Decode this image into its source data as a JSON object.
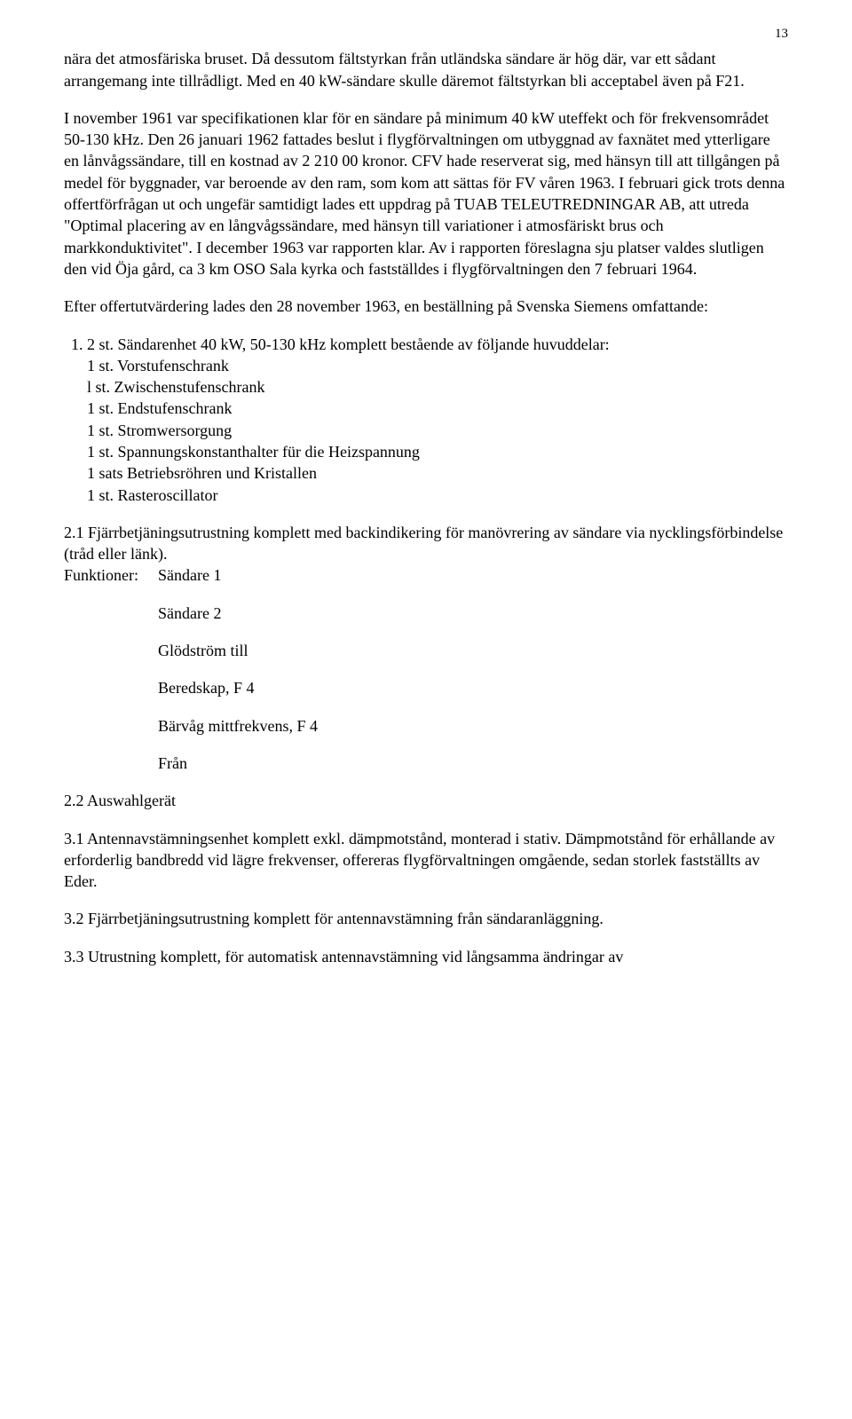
{
  "page_number": "13",
  "para1": "nära det atmosfäriska bruset. Då dessutom fältstyrkan från utländska sändare är hög där, var ett sådant arrangemang inte tillrådligt. Med en 40 kW-sändare skulle däremot fältstyrkan bli acceptabel även på F21.",
  "para2": "I november 1961 var specifikationen klar för en sändare på minimum 40 kW uteffekt och för frekvensområdet 50-130 kHz. Den 26 januari 1962 fattades beslut i flygförvaltningen om utbyggnad av faxnätet med ytterligare en lånvågssändare, till en kostnad av 2 210 00 kronor. CFV hade reserverat sig, med hänsyn till att tillgången på medel för byggnader, var beroende av den ram, som kom att sättas för FV våren 1963. I februari gick trots denna offertförfrågan ut och ungefär samtidigt lades ett uppdrag på TUAB TELEUTREDNINGAR AB, att utreda \"Optimal placering av en långvågssändare, med hänsyn till variationer i atmosfäriskt brus och markkonduktivitet\". I december 1963 var rapporten klar. Av i rapporten föreslagna sju platser valdes slutligen den vid Öja gård, ca 3 km OSO Sala kyrka och fastställdes i flygförvaltningen den 7 februari 1964.",
  "para3": "Efter offertutvärdering lades den 28 november 1963, en beställning på Svenska Siemens omfattande:",
  "item1_main": "1. 2 st. Sändarenhet 40 kW, 50-130 kHz komplett bestående av följande huvuddelar:",
  "item1_sub": [
    "1 st. Vorstufenschrank",
    "l st. Zwischenstufenschrank",
    "1 st. Endstufenschrank",
    "1 st. Stromwersorgung",
    "1 st. Spannungskonstanthalter für die Heizspannung",
    "1 sats Betriebsröhren und Kristallen",
    "1 st. Rasteroscillator"
  ],
  "item2_1": "2.1 Fjärrbetjäningsutrustning komplett med backindikering för manövrering av sändare via nycklingsförbindelse (tråd eller länk).",
  "func_label": "Funktioner:",
  "func_items": [
    "Sändare 1",
    "Sändare 2",
    "Glödström till",
    "Beredskap, F 4",
    "Bärvåg mittfrekvens, F 4",
    "Från"
  ],
  "item2_2": "2.2 Auswahlgerät",
  "item3_1": "3.1 Antennavstämningsenhet komplett exkl. dämpmotstånd, monterad i stativ. Dämpmotstånd för erhållande av erforderlig bandbredd vid lägre frekvenser, offereras flygförvaltningen omgående, sedan storlek fastställts av Eder.",
  "item3_2": "3.2 Fjärrbetjäningsutrustning komplett för antennavstämning från sändaranläggning.",
  "item3_3": "3.3 Utrustning komplett, för automatisk antennavstämning vid långsamma ändringar av"
}
